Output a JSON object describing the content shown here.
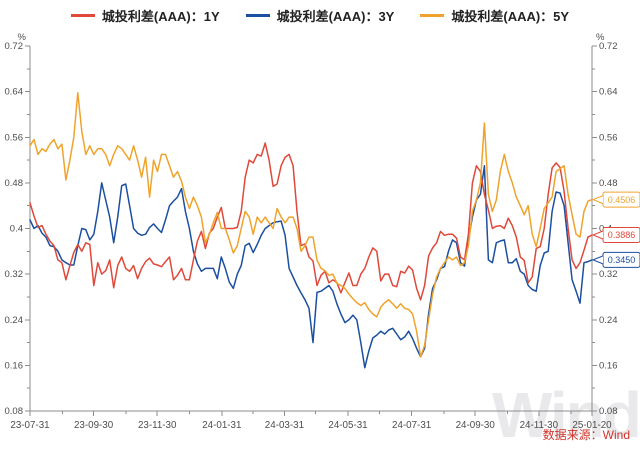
{
  "legend": [
    {
      "id": "1y",
      "label": "城投利差(AAA)：1Y",
      "color": "#e0483a"
    },
    {
      "id": "3y",
      "label": "城投利差(AAA)：3Y",
      "color": "#1b4fa0"
    },
    {
      "id": "5y",
      "label": "城投利差(AAA)：5Y",
      "color": "#efa32c"
    }
  ],
  "source_note": "数据来源：Wind",
  "watermark": "Wind",
  "chart_data": {
    "type": "line",
    "title": "",
    "x_range": [
      "2023-07-31",
      "2025-01-20"
    ],
    "total_days": 539,
    "grid": false,
    "y_axis": {
      "unit": "%",
      "min": 0.08,
      "max": 0.72,
      "tick_step": 0.08,
      "minor_step": 0.04,
      "ticks": [
        {
          "v": 0.72,
          "label": "0.72"
        },
        {
          "v": 0.64,
          "label": "0.64"
        },
        {
          "v": 0.56,
          "label": "0.56"
        },
        {
          "v": 0.48,
          "label": "0.48"
        },
        {
          "v": 0.4,
          "label": "0.4"
        },
        {
          "v": 0.32,
          "label": "0.32"
        },
        {
          "v": 0.24,
          "label": "0.24"
        },
        {
          "v": 0.16,
          "label": "0.16"
        },
        {
          "v": 0.08,
          "label": "0.08"
        }
      ]
    },
    "x_ticks": [
      {
        "d": 0,
        "label": "23-07-31"
      },
      {
        "d": 61,
        "label": "23-09-30"
      },
      {
        "d": 122,
        "label": "23-11-30"
      },
      {
        "d": 184,
        "label": "24-01-31"
      },
      {
        "d": 244,
        "label": "24-03-31"
      },
      {
        "d": 305,
        "label": "24-05-31"
      },
      {
        "d": 366,
        "label": "24-07-31"
      },
      {
        "d": 427,
        "label": "24-09-30"
      },
      {
        "d": 488,
        "label": "24-11-30"
      },
      {
        "d": 539,
        "label": "25-01-20"
      }
    ],
    "x_minor_days": [
      31,
      92,
      153,
      214,
      274,
      335,
      397,
      458,
      519
    ],
    "axis_color": "#8c8c8c",
    "tick_label_color": "#4d4d4d",
    "series": [
      {
        "id": "1y",
        "name": "城投利差(AAA)：1Y",
        "color": "#e0483a",
        "last_label": "0.3886",
        "values": [
          0.445,
          0.422,
          0.402,
          0.405,
          0.39,
          0.378,
          0.37,
          0.345,
          0.34,
          0.31,
          0.335,
          0.358,
          0.372,
          0.36,
          0.375,
          0.372,
          0.3,
          0.34,
          0.32,
          0.326,
          0.345,
          0.296,
          0.335,
          0.35,
          0.33,
          0.325,
          0.335,
          0.312,
          0.33,
          0.342,
          0.348,
          0.338,
          0.336,
          0.333,
          0.342,
          0.35,
          0.31,
          0.318,
          0.33,
          0.31,
          0.31,
          0.345,
          0.378,
          0.395,
          0.365,
          0.392,
          0.4,
          0.42,
          0.437,
          0.4,
          0.4,
          0.4,
          0.402,
          0.43,
          0.49,
          0.52,
          0.515,
          0.53,
          0.527,
          0.55,
          0.52,
          0.474,
          0.478,
          0.51,
          0.525,
          0.53,
          0.51,
          0.43,
          0.37,
          0.373,
          0.35,
          0.343,
          0.3,
          0.318,
          0.325,
          0.305,
          0.31,
          0.305,
          0.287,
          0.305,
          0.322,
          0.3,
          0.3,
          0.32,
          0.33,
          0.35,
          0.366,
          0.36,
          0.308,
          0.32,
          0.32,
          0.3,
          0.298,
          0.325,
          0.322,
          0.334,
          0.327,
          0.295,
          0.275,
          0.3,
          0.352,
          0.366,
          0.375,
          0.395,
          0.388,
          0.39,
          0.39,
          0.383,
          0.35,
          0.345,
          0.39,
          0.48,
          0.51,
          0.5,
          0.46,
          0.432,
          0.4,
          0.404,
          0.405,
          0.4,
          0.418,
          0.405,
          0.385,
          0.35,
          0.344,
          0.305,
          0.315,
          0.365,
          0.368,
          0.4,
          0.46,
          0.506,
          0.515,
          0.507,
          0.465,
          0.4,
          0.345,
          0.33,
          0.34,
          0.362,
          0.385,
          0.3886
        ]
      },
      {
        "id": "3y",
        "name": "城投利差(AAA)：3Y",
        "color": "#1b4fa0",
        "last_label": "0.3450",
        "values": [
          0.415,
          0.4,
          0.405,
          0.392,
          0.385,
          0.37,
          0.368,
          0.36,
          0.345,
          0.34,
          0.336,
          0.336,
          0.37,
          0.4,
          0.398,
          0.38,
          0.39,
          0.43,
          0.48,
          0.45,
          0.42,
          0.375,
          0.42,
          0.475,
          0.478,
          0.44,
          0.4,
          0.392,
          0.388,
          0.39,
          0.402,
          0.408,
          0.4,
          0.393,
          0.415,
          0.44,
          0.448,
          0.455,
          0.47,
          0.43,
          0.4,
          0.36,
          0.338,
          0.325,
          0.33,
          0.33,
          0.33,
          0.312,
          0.35,
          0.33,
          0.306,
          0.295,
          0.32,
          0.335,
          0.37,
          0.374,
          0.358,
          0.372,
          0.388,
          0.4,
          0.405,
          0.41,
          0.412,
          0.413,
          0.388,
          0.33,
          0.315,
          0.3,
          0.287,
          0.275,
          0.26,
          0.2,
          0.288,
          0.29,
          0.295,
          0.3,
          0.29,
          0.268,
          0.25,
          0.235,
          0.24,
          0.248,
          0.24,
          0.2,
          0.156,
          0.185,
          0.208,
          0.213,
          0.22,
          0.215,
          0.222,
          0.225,
          0.215,
          0.205,
          0.21,
          0.22,
          0.207,
          0.19,
          0.175,
          0.19,
          0.25,
          0.295,
          0.31,
          0.33,
          0.333,
          0.36,
          0.38,
          0.375,
          0.34,
          0.334,
          0.38,
          0.42,
          0.45,
          0.46,
          0.51,
          0.345,
          0.34,
          0.375,
          0.378,
          0.38,
          0.34,
          0.34,
          0.347,
          0.325,
          0.32,
          0.3,
          0.293,
          0.29,
          0.335,
          0.357,
          0.36,
          0.43,
          0.464,
          0.462,
          0.44,
          0.375,
          0.31,
          0.29,
          0.269,
          0.34,
          0.342,
          0.345
        ]
      },
      {
        "id": "5y",
        "name": "城投利差(AAA)：5Y",
        "color": "#efa32c",
        "last_label": "0.4506",
        "values": [
          0.545,
          0.556,
          0.53,
          0.54,
          0.535,
          0.548,
          0.556,
          0.54,
          0.548,
          0.485,
          0.52,
          0.56,
          0.638,
          0.57,
          0.53,
          0.545,
          0.53,
          0.54,
          0.54,
          0.53,
          0.51,
          0.53,
          0.545,
          0.54,
          0.53,
          0.52,
          0.545,
          0.52,
          0.49,
          0.525,
          0.455,
          0.52,
          0.5,
          0.53,
          0.53,
          0.51,
          0.49,
          0.5,
          0.483,
          0.455,
          0.435,
          0.455,
          0.44,
          0.42,
          0.375,
          0.39,
          0.41,
          0.428,
          0.4,
          0.4,
          0.38,
          0.357,
          0.37,
          0.4,
          0.43,
          0.42,
          0.39,
          0.42,
          0.41,
          0.42,
          0.41,
          0.4,
          0.435,
          0.42,
          0.41,
          0.42,
          0.42,
          0.4,
          0.36,
          0.37,
          0.385,
          0.385,
          0.345,
          0.33,
          0.326,
          0.318,
          0.32,
          0.304,
          0.3,
          0.295,
          0.285,
          0.277,
          0.27,
          0.265,
          0.27,
          0.258,
          0.25,
          0.245,
          0.262,
          0.27,
          0.275,
          0.268,
          0.26,
          0.268,
          0.26,
          0.258,
          0.25,
          0.22,
          0.175,
          0.195,
          0.24,
          0.285,
          0.315,
          0.33,
          0.34,
          0.35,
          0.345,
          0.35,
          0.335,
          0.34,
          0.37,
          0.43,
          0.45,
          0.48,
          0.585,
          0.46,
          0.43,
          0.45,
          0.5,
          0.53,
          0.5,
          0.48,
          0.455,
          0.44,
          0.424,
          0.44,
          0.39,
          0.368,
          0.4,
          0.435,
          0.445,
          0.455,
          0.5,
          0.505,
          0.51,
          0.46,
          0.424,
          0.39,
          0.385,
          0.43,
          0.448,
          0.4506
        ]
      }
    ]
  }
}
